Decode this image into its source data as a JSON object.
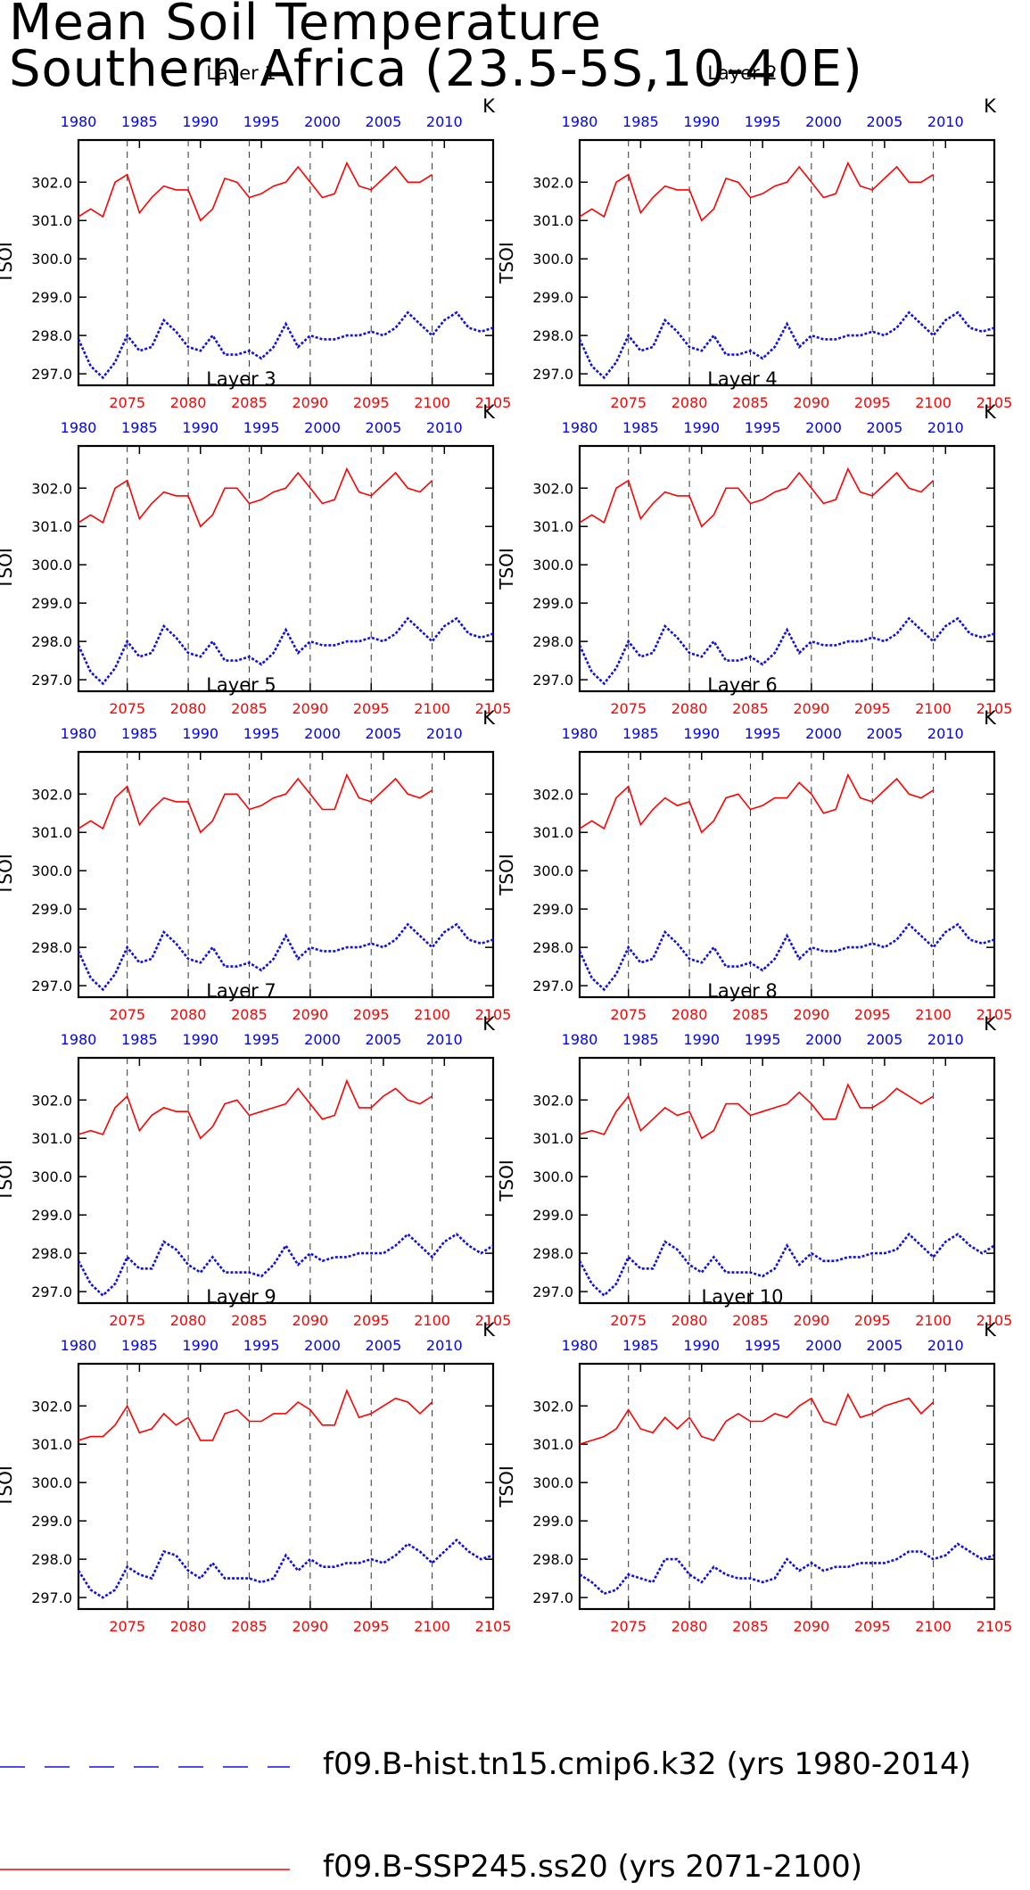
{
  "title": {
    "line1": "Mean Soil Temperature",
    "line2": "Southern Africa (23.5-5S,10-40E)"
  },
  "chart_data": {
    "type": "line",
    "ylabel": "TSOI",
    "units": "K",
    "top_axis_ticks": [
      1980,
      1985,
      1990,
      1995,
      2000,
      2005,
      2010
    ],
    "bottom_axis_ticks": [
      2075,
      2080,
      2085,
      2090,
      2095,
      2100,
      2105
    ],
    "y_ticks": [
      "297.0",
      "298.0",
      "299.0",
      "300.0",
      "301.0",
      "302.0"
    ],
    "ylim": [
      296.7,
      303.1
    ],
    "colors": {
      "hist": "#1010e0",
      "ssp": "#ff0000",
      "top_axis": "#0000ff",
      "bottom_axis": "#ff0000"
    },
    "series_names": {
      "hist": "f09.B-hist.tn15.cmip6.k32 (yrs 1980-2014)",
      "ssp": "f09.B-SSP245.ss20 (yrs 2071-2100)"
    },
    "panels": [
      {
        "label": "Layer 1",
        "hist": [
          297.9,
          297.2,
          296.9,
          297.3,
          298.0,
          297.6,
          297.7,
          298.4,
          298.1,
          297.7,
          297.6,
          298.0,
          297.5,
          297.5,
          297.6,
          297.4,
          297.7,
          298.3,
          297.7,
          298.0,
          297.9,
          297.9,
          298.0,
          298.0,
          298.1,
          298.0,
          298.2,
          298.6,
          298.3,
          298.0,
          298.4,
          298.6,
          298.2,
          298.1,
          298.2
        ],
        "ssp": [
          301.1,
          301.3,
          301.1,
          302.0,
          302.2,
          301.2,
          301.6,
          301.9,
          301.8,
          301.8,
          301.0,
          301.3,
          302.1,
          302.0,
          301.6,
          301.7,
          301.9,
          302.0,
          302.4,
          302.0,
          301.6,
          301.7,
          302.5,
          301.9,
          301.8,
          302.1,
          302.4,
          302.0,
          302.0,
          302.2
        ]
      },
      {
        "label": "Layer 2",
        "hist": [
          297.9,
          297.2,
          296.9,
          297.3,
          298.0,
          297.6,
          297.7,
          298.4,
          298.1,
          297.7,
          297.6,
          298.0,
          297.5,
          297.5,
          297.6,
          297.4,
          297.7,
          298.3,
          297.7,
          298.0,
          297.9,
          297.9,
          298.0,
          298.0,
          298.1,
          298.0,
          298.2,
          298.6,
          298.3,
          298.0,
          298.4,
          298.6,
          298.2,
          298.1,
          298.2
        ],
        "ssp": [
          301.1,
          301.3,
          301.1,
          302.0,
          302.2,
          301.2,
          301.6,
          301.9,
          301.8,
          301.8,
          301.0,
          301.3,
          302.1,
          302.0,
          301.6,
          301.7,
          301.9,
          302.0,
          302.4,
          302.0,
          301.6,
          301.7,
          302.5,
          301.9,
          301.8,
          302.1,
          302.4,
          302.0,
          302.0,
          302.2
        ]
      },
      {
        "label": "Layer 3",
        "hist": [
          297.9,
          297.2,
          296.9,
          297.3,
          298.0,
          297.6,
          297.7,
          298.4,
          298.1,
          297.7,
          297.6,
          298.0,
          297.5,
          297.5,
          297.6,
          297.4,
          297.7,
          298.3,
          297.7,
          298.0,
          297.9,
          297.9,
          298.0,
          298.0,
          298.1,
          298.0,
          298.2,
          298.6,
          298.3,
          298.0,
          298.4,
          298.6,
          298.2,
          298.1,
          298.2
        ],
        "ssp": [
          301.1,
          301.3,
          301.1,
          302.0,
          302.2,
          301.2,
          301.6,
          301.9,
          301.8,
          301.8,
          301.0,
          301.3,
          302.0,
          302.0,
          301.6,
          301.7,
          301.9,
          302.0,
          302.4,
          302.0,
          301.6,
          301.7,
          302.5,
          301.9,
          301.8,
          302.1,
          302.4,
          302.0,
          301.9,
          302.2
        ]
      },
      {
        "label": "Layer 4",
        "hist": [
          297.9,
          297.2,
          296.9,
          297.3,
          298.0,
          297.6,
          297.7,
          298.4,
          298.1,
          297.7,
          297.6,
          298.0,
          297.5,
          297.5,
          297.6,
          297.4,
          297.7,
          298.3,
          297.7,
          298.0,
          297.9,
          297.9,
          298.0,
          298.0,
          298.1,
          298.0,
          298.2,
          298.6,
          298.3,
          298.0,
          298.4,
          298.6,
          298.2,
          298.1,
          298.2
        ],
        "ssp": [
          301.1,
          301.3,
          301.1,
          302.0,
          302.2,
          301.2,
          301.6,
          301.9,
          301.8,
          301.8,
          301.0,
          301.3,
          302.0,
          302.0,
          301.6,
          301.7,
          301.9,
          302.0,
          302.4,
          302.0,
          301.6,
          301.7,
          302.5,
          301.9,
          301.8,
          302.1,
          302.4,
          302.0,
          301.9,
          302.2
        ]
      },
      {
        "label": "Layer 5",
        "hist": [
          297.9,
          297.2,
          296.9,
          297.3,
          298.0,
          297.6,
          297.7,
          298.4,
          298.1,
          297.7,
          297.6,
          298.0,
          297.5,
          297.5,
          297.6,
          297.4,
          297.7,
          298.3,
          297.7,
          298.0,
          297.9,
          297.9,
          298.0,
          298.0,
          298.1,
          298.0,
          298.2,
          298.6,
          298.3,
          298.0,
          298.4,
          298.6,
          298.2,
          298.1,
          298.2
        ],
        "ssp": [
          301.1,
          301.3,
          301.1,
          301.9,
          302.2,
          301.2,
          301.6,
          301.9,
          301.8,
          301.8,
          301.0,
          301.3,
          302.0,
          302.0,
          301.6,
          301.7,
          301.9,
          302.0,
          302.4,
          302.0,
          301.6,
          301.6,
          302.5,
          301.9,
          301.8,
          302.1,
          302.4,
          302.0,
          301.9,
          302.1
        ]
      },
      {
        "label": "Layer 6",
        "hist": [
          297.9,
          297.2,
          296.9,
          297.3,
          298.0,
          297.6,
          297.7,
          298.4,
          298.1,
          297.7,
          297.6,
          298.0,
          297.5,
          297.5,
          297.6,
          297.4,
          297.7,
          298.3,
          297.7,
          298.0,
          297.9,
          297.9,
          298.0,
          298.0,
          298.1,
          298.0,
          298.2,
          298.6,
          298.3,
          298.0,
          298.4,
          298.6,
          298.2,
          298.1,
          298.2
        ],
        "ssp": [
          301.1,
          301.3,
          301.1,
          301.9,
          302.2,
          301.2,
          301.6,
          301.9,
          301.7,
          301.8,
          301.0,
          301.3,
          301.9,
          302.0,
          301.6,
          301.7,
          301.9,
          301.9,
          302.3,
          302.0,
          301.5,
          301.6,
          302.5,
          301.9,
          301.8,
          302.1,
          302.4,
          302.0,
          301.9,
          302.1
        ]
      },
      {
        "label": "Layer 7",
        "hist": [
          297.8,
          297.2,
          296.9,
          297.2,
          297.9,
          297.6,
          297.6,
          298.3,
          298.1,
          297.7,
          297.5,
          297.9,
          297.5,
          297.5,
          297.5,
          297.4,
          297.7,
          298.2,
          297.7,
          298.0,
          297.8,
          297.9,
          297.9,
          298.0,
          298.0,
          298.0,
          298.2,
          298.5,
          298.2,
          297.9,
          298.3,
          298.5,
          298.2,
          298.0,
          298.2
        ],
        "ssp": [
          301.1,
          301.2,
          301.1,
          301.8,
          302.1,
          301.2,
          301.6,
          301.8,
          301.7,
          301.7,
          301.0,
          301.3,
          301.9,
          302.0,
          301.6,
          301.7,
          301.8,
          301.9,
          302.3,
          301.9,
          301.5,
          301.6,
          302.5,
          301.8,
          301.8,
          302.1,
          302.3,
          302.0,
          301.9,
          302.1
        ]
      },
      {
        "label": "Layer 8",
        "hist": [
          297.8,
          297.2,
          296.9,
          297.2,
          297.9,
          297.6,
          297.6,
          298.3,
          298.1,
          297.7,
          297.5,
          297.9,
          297.5,
          297.5,
          297.5,
          297.4,
          297.6,
          298.2,
          297.7,
          298.0,
          297.8,
          297.8,
          297.9,
          297.9,
          298.0,
          298.0,
          298.1,
          298.5,
          298.2,
          297.9,
          298.3,
          298.5,
          298.2,
          298.0,
          298.2
        ],
        "ssp": [
          301.1,
          301.2,
          301.1,
          301.7,
          302.1,
          301.2,
          301.5,
          301.8,
          301.6,
          301.7,
          301.0,
          301.2,
          301.9,
          301.9,
          301.6,
          301.7,
          301.8,
          301.9,
          302.2,
          301.9,
          301.5,
          301.5,
          302.4,
          301.8,
          301.8,
          302.0,
          302.3,
          302.1,
          301.9,
          302.1
        ]
      },
      {
        "label": "Layer 9",
        "hist": [
          297.7,
          297.2,
          297.0,
          297.2,
          297.8,
          297.6,
          297.5,
          298.2,
          298.1,
          297.7,
          297.5,
          297.9,
          297.5,
          297.5,
          297.5,
          297.4,
          297.5,
          298.1,
          297.7,
          298.0,
          297.8,
          297.8,
          297.9,
          297.9,
          298.0,
          297.9,
          298.1,
          298.4,
          298.2,
          297.9,
          298.2,
          298.5,
          298.2,
          298.0,
          298.1
        ],
        "ssp": [
          301.1,
          301.2,
          301.2,
          301.5,
          302.0,
          301.3,
          301.4,
          301.8,
          301.5,
          301.7,
          301.1,
          301.1,
          301.8,
          301.9,
          301.6,
          301.6,
          301.8,
          301.8,
          302.1,
          301.9,
          301.5,
          301.5,
          302.4,
          301.7,
          301.8,
          302.0,
          302.2,
          302.1,
          301.8,
          302.1
        ]
      },
      {
        "label": "Layer 10",
        "hist": [
          297.6,
          297.4,
          297.1,
          297.2,
          297.6,
          297.5,
          297.4,
          298.0,
          298.0,
          297.6,
          297.4,
          297.8,
          297.6,
          297.5,
          297.5,
          297.4,
          297.5,
          298.0,
          297.7,
          297.9,
          297.7,
          297.8,
          297.8,
          297.9,
          297.9,
          297.9,
          298.0,
          298.2,
          298.2,
          298.0,
          298.1,
          298.4,
          298.2,
          298.0,
          298.1
        ],
        "ssp": [
          301.0,
          301.1,
          301.2,
          301.4,
          301.9,
          301.4,
          301.3,
          301.7,
          301.4,
          301.7,
          301.2,
          301.1,
          301.6,
          301.8,
          301.6,
          301.6,
          301.8,
          301.7,
          302.0,
          302.2,
          301.6,
          301.5,
          302.3,
          301.7,
          301.8,
          302.0,
          302.1,
          302.2,
          301.8,
          302.1
        ]
      }
    ]
  }
}
